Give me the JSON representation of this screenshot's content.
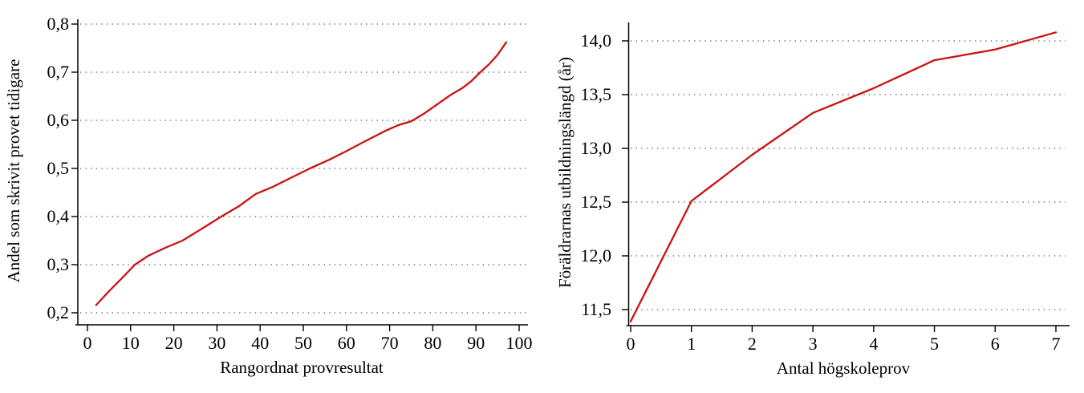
{
  "page": {
    "background": "#ffffff"
  },
  "chart_data": [
    {
      "id": "left",
      "type": "line",
      "title": "",
      "xlabel": "Rangordnat provresultat",
      "ylabel": "Andel som skrivit provet tidigare",
      "xlim": [
        0,
        100
      ],
      "ylim": [
        0.2,
        0.8
      ],
      "grid": "horizontal-dotted",
      "legend": "none",
      "x_ticks": {
        "values": [
          0,
          10,
          20,
          30,
          40,
          50,
          60,
          70,
          80,
          90,
          100
        ],
        "labels": [
          "0",
          "10",
          "20",
          "30",
          "40",
          "50",
          "60",
          "70",
          "80",
          "90",
          "100"
        ]
      },
      "y_ticks": {
        "values": [
          0.2,
          0.3,
          0.4,
          0.5,
          0.6,
          0.7,
          0.8
        ],
        "labels": [
          "0,2",
          "0,3",
          "0,4",
          "0,5",
          "0,6",
          "0,7",
          "0,8"
        ]
      },
      "series": [
        {
          "name": "andel-som-skrivit-provet-tidigare",
          "color": "#cc1111",
          "x": [
            2,
            5,
            8,
            11,
            14,
            18,
            22,
            26,
            31,
            35,
            39,
            43,
            47,
            52,
            56,
            60,
            64,
            69,
            72,
            75,
            78,
            81,
            84,
            87,
            89,
            91,
            93,
            95,
            97
          ],
          "y": [
            0.216,
            0.245,
            0.272,
            0.3,
            0.318,
            0.335,
            0.35,
            0.372,
            0.4,
            0.421,
            0.447,
            0.462,
            0.48,
            0.502,
            0.518,
            0.536,
            0.555,
            0.578,
            0.59,
            0.598,
            0.614,
            0.633,
            0.652,
            0.668,
            0.682,
            0.7,
            0.716,
            0.736,
            0.762
          ]
        }
      ]
    },
    {
      "id": "right",
      "type": "line",
      "title": "",
      "xlabel": "Antal högskoleprov",
      "ylabel": "Föräldrarnas utbildningslängd (år)",
      "xlim": [
        0,
        7
      ],
      "ylim": [
        11.5,
        14.0
      ],
      "grid": "horizontal-dotted",
      "legend": "none",
      "x_ticks": {
        "values": [
          0,
          1,
          2,
          3,
          4,
          5,
          6,
          7
        ],
        "labels": [
          "0",
          "1",
          "2",
          "3",
          "4",
          "5",
          "6",
          "7"
        ]
      },
      "y_ticks": {
        "values": [
          11.5,
          12.0,
          12.5,
          13.0,
          13.5,
          14.0
        ],
        "labels": [
          "11,5",
          "12,0",
          "12,5",
          "13,0",
          "13,5",
          "14,0"
        ]
      },
      "series": [
        {
          "name": "foraldrarnas-utbildningslangd",
          "color": "#cc1111",
          "x": [
            0,
            1,
            2,
            3,
            4,
            5,
            6,
            7
          ],
          "y": [
            11.39,
            12.51,
            12.94,
            13.33,
            13.56,
            13.82,
            13.92,
            14.08
          ]
        }
      ]
    }
  ]
}
